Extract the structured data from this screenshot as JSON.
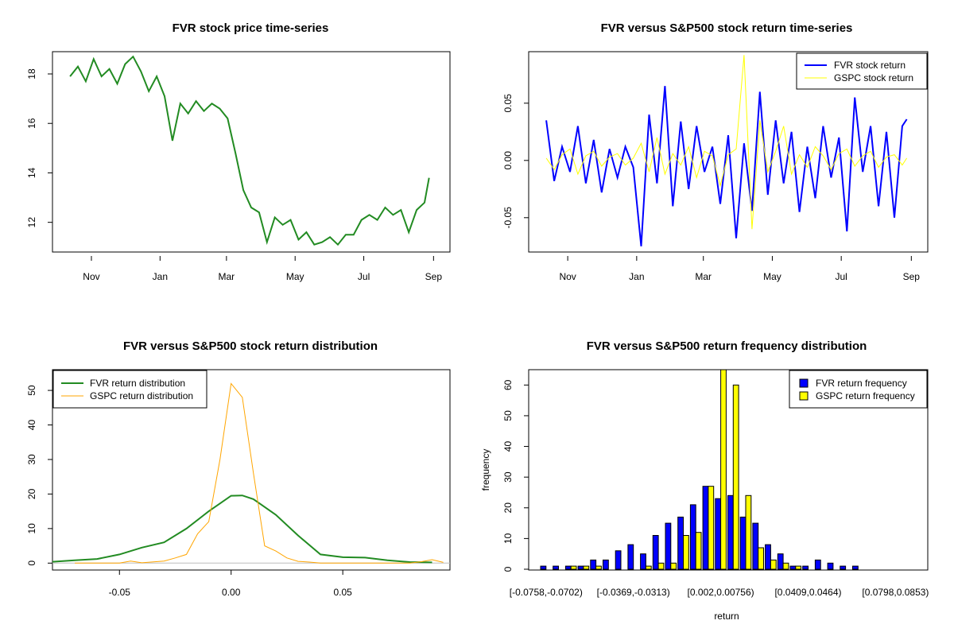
{
  "chart_data": [
    {
      "type": "line",
      "title": "FVR stock price time-series",
      "xlabel": "",
      "ylabel": "",
      "x_tick_labels": [
        "Nov",
        "Jan",
        "Mar",
        "May",
        "Jul",
        "Sep"
      ],
      "y_ticks": [
        12,
        14,
        16,
        18
      ],
      "ylim": [
        10.8,
        18.9
      ],
      "x": [
        "2016-10-13",
        "2016-10-20",
        "2016-10-27",
        "2016-11-03",
        "2016-11-10",
        "2016-11-17",
        "2016-11-24",
        "2016-12-01",
        "2016-12-08",
        "2016-12-15",
        "2016-12-22",
        "2016-12-29",
        "2017-01-05",
        "2017-01-12",
        "2017-01-19",
        "2017-01-26",
        "2017-02-02",
        "2017-02-09",
        "2017-02-16",
        "2017-02-23",
        "2017-03-02",
        "2017-03-09",
        "2017-03-16",
        "2017-03-23",
        "2017-03-30",
        "2017-04-06",
        "2017-04-13",
        "2017-04-20",
        "2017-04-27",
        "2017-05-04",
        "2017-05-11",
        "2017-05-18",
        "2017-05-25",
        "2017-06-01",
        "2017-06-08",
        "2017-06-15",
        "2017-06-22",
        "2017-06-29",
        "2017-07-06",
        "2017-07-13",
        "2017-07-20",
        "2017-07-27",
        "2017-08-03",
        "2017-08-10",
        "2017-08-17",
        "2017-08-24",
        "2017-08-28"
      ],
      "series": [
        {
          "name": "",
          "color": "#228b22",
          "values": [
            17.9,
            18.3,
            17.7,
            18.6,
            17.9,
            18.2,
            17.6,
            18.4,
            18.7,
            18.1,
            17.3,
            17.9,
            17.1,
            15.3,
            16.8,
            16.4,
            16.9,
            16.5,
            16.8,
            16.6,
            16.2,
            14.8,
            13.3,
            12.6,
            12.4,
            11.2,
            12.2,
            11.9,
            12.1,
            11.3,
            11.6,
            11.1,
            11.2,
            11.4,
            11.1,
            11.5,
            11.5,
            12.1,
            12.3,
            12.1,
            12.6,
            12.3,
            12.5,
            11.6,
            12.5,
            12.8,
            13.8
          ]
        }
      ]
    },
    {
      "type": "line",
      "title": "FVR versus S&P500 stock return time-series",
      "xlabel": "",
      "ylabel": "",
      "x_tick_labels": [
        "Nov",
        "Jan",
        "Mar",
        "May",
        "Jul",
        "Sep"
      ],
      "y_tick_labels": [
        "-0.05",
        "0.00",
        "0.05"
      ],
      "ylim": [
        -0.08,
        0.095
      ],
      "legend": "top-right",
      "x": [
        "2016-10-13",
        "2016-10-20",
        "2016-10-27",
        "2016-11-03",
        "2016-11-10",
        "2016-11-17",
        "2016-11-24",
        "2016-12-01",
        "2016-12-08",
        "2016-12-15",
        "2016-12-22",
        "2016-12-29",
        "2017-01-05",
        "2017-01-12",
        "2017-01-19",
        "2017-01-26",
        "2017-02-02",
        "2017-02-09",
        "2017-02-16",
        "2017-02-23",
        "2017-03-02",
        "2017-03-09",
        "2017-03-16",
        "2017-03-23",
        "2017-03-30",
        "2017-04-06",
        "2017-04-13",
        "2017-04-20",
        "2017-04-27",
        "2017-05-04",
        "2017-05-11",
        "2017-05-18",
        "2017-05-25",
        "2017-06-01",
        "2017-06-08",
        "2017-06-15",
        "2017-06-22",
        "2017-06-29",
        "2017-07-06",
        "2017-07-13",
        "2017-07-20",
        "2017-07-27",
        "2017-08-03",
        "2017-08-10",
        "2017-08-17",
        "2017-08-24",
        "2017-08-28"
      ],
      "series": [
        {
          "name": "FVR stock return",
          "color": "#0000ff",
          "values": [
            0.035,
            -0.018,
            0.012,
            -0.01,
            0.03,
            -0.02,
            0.018,
            -0.028,
            0.01,
            -0.015,
            0.012,
            -0.006,
            -0.075,
            0.04,
            -0.02,
            0.065,
            -0.04,
            0.034,
            -0.025,
            0.03,
            -0.01,
            0.012,
            -0.038,
            0.022,
            -0.068,
            0.015,
            -0.044,
            0.06,
            -0.03,
            0.035,
            -0.02,
            0.025,
            -0.045,
            0.012,
            -0.033,
            0.03,
            -0.015,
            0.02,
            -0.062,
            0.055,
            -0.01,
            0.03,
            -0.04,
            0.025,
            -0.05,
            0.03,
            0.036
          ]
        },
        {
          "name": "GSPC stock return",
          "color": "#ffff00",
          "values": [
            0.002,
            -0.008,
            0.005,
            0.01,
            -0.012,
            0.004,
            0.008,
            -0.005,
            0.003,
            0.006,
            -0.004,
            0.002,
            0.015,
            -0.01,
            0.02,
            -0.012,
            0.006,
            -0.004,
            0.012,
            -0.015,
            0.008,
            0.004,
            -0.022,
            0.005,
            0.01,
            0.092,
            -0.06,
            0.035,
            -0.01,
            0.008,
            0.03,
            -0.012,
            0.005,
            -0.006,
            0.012,
            0.004,
            -0.008,
            0.006,
            0.01,
            -0.005,
            0.004,
            0.008,
            -0.006,
            0.003,
            0.005,
            -0.004,
            0.002
          ]
        }
      ]
    },
    {
      "type": "line",
      "title": "FVR versus S&P500 stock return distribution",
      "xlabel": "",
      "ylabel": "",
      "x_tick_labels": [
        "-0.05",
        "0.00",
        "0.05"
      ],
      "y_ticks": [
        0,
        10,
        20,
        30,
        40,
        50
      ],
      "xlim": [
        -0.08,
        0.098
      ],
      "ylim": [
        -2,
        56
      ],
      "legend": "top-left",
      "series": [
        {
          "name": "FVR return distribution",
          "color": "#228b22",
          "x": [
            -0.08,
            -0.07,
            -0.06,
            -0.05,
            -0.04,
            -0.03,
            -0.02,
            -0.01,
            0.0,
            0.005,
            0.01,
            0.02,
            0.03,
            0.04,
            0.05,
            0.06,
            0.07,
            0.08,
            0.09
          ],
          "values": [
            0.4,
            0.8,
            1.2,
            2.5,
            4.5,
            6.0,
            10.0,
            15.0,
            19.5,
            19.6,
            18.5,
            14.0,
            8.0,
            2.5,
            1.7,
            1.6,
            0.8,
            0.3,
            0.2
          ]
        },
        {
          "name": "GSPC return distribution",
          "color": "#ffa500",
          "x": [
            -0.07,
            -0.06,
            -0.05,
            -0.045,
            -0.04,
            -0.03,
            -0.025,
            -0.02,
            -0.015,
            -0.01,
            -0.005,
            0.0,
            0.005,
            0.01,
            0.015,
            0.02,
            0.025,
            0.03,
            0.035,
            0.04,
            0.05,
            0.06,
            0.07,
            0.08,
            0.085,
            0.09,
            0.095
          ],
          "values": [
            0,
            0,
            0,
            0.6,
            0.1,
            0.6,
            1.5,
            2.5,
            8.5,
            12.0,
            30.0,
            52.0,
            48.0,
            26.0,
            5.0,
            3.5,
            1.5,
            0.5,
            0.3,
            0,
            0,
            0,
            0,
            0,
            0.4,
            1.0,
            0.2
          ]
        }
      ]
    },
    {
      "type": "bar",
      "title": "FVR versus S&P500 return frequency distribution",
      "xlabel": "return",
      "ylabel": "frequency",
      "y_ticks": [
        0,
        10,
        20,
        30,
        40,
        50,
        60
      ],
      "ylim": [
        0,
        65
      ],
      "legend": "top-right",
      "x_tick_labels": [
        "[-0.0758,-0.0702)",
        "[-0.0369,-0.0313)",
        "[0.002,0.00756)",
        "[0.0409,0.0464)",
        "[0.0798,0.0853)"
      ],
      "series": [
        {
          "name": "FVR return frequency",
          "color": "#0000ff",
          "values": [
            1,
            1,
            1,
            1,
            3,
            3,
            6,
            8,
            5,
            11,
            15,
            17,
            21,
            27,
            23,
            24,
            17,
            15,
            8,
            5,
            1,
            1,
            3,
            2,
            1,
            1,
            0,
            0,
            0,
            0
          ]
        },
        {
          "name": "GSPC return frequency",
          "color": "#ffff00",
          "values": [
            0,
            0,
            1,
            1,
            1,
            0,
            0,
            0,
            1,
            2,
            2,
            11,
            12,
            27,
            67,
            60,
            24,
            7,
            3,
            2,
            1,
            0,
            0,
            0,
            0,
            0,
            0,
            0,
            0,
            0
          ]
        }
      ]
    }
  ]
}
